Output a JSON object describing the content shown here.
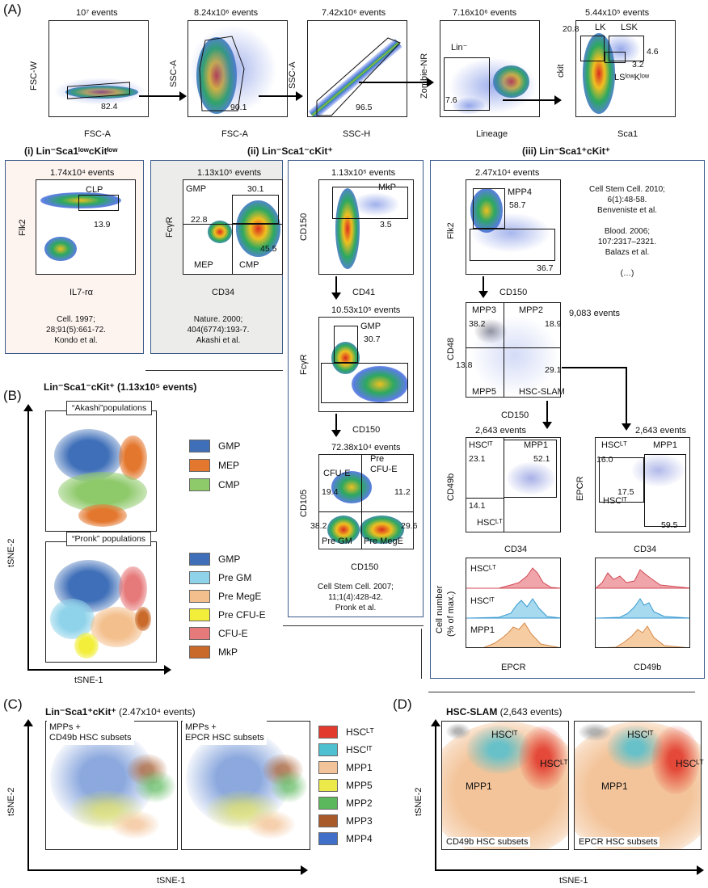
{
  "panelA": {
    "letter": "(A)",
    "plots": [
      {
        "events": "10⁷ events",
        "y": "FSC-W",
        "x": "FSC-A",
        "gate": "82.4"
      },
      {
        "events": "8.24x10⁶ events",
        "y": "SSC-A",
        "x": "FSC-A",
        "gate": "90.1"
      },
      {
        "events": "7.42x10⁶ events",
        "y": "SSC-A",
        "x": "SSC-H",
        "gate": "96.5"
      },
      {
        "events": "7.16x10⁶ events",
        "y": "Zombie-NR",
        "x": "Lineage",
        "gate": "7.6",
        "pop": "Lin⁻"
      },
      {
        "events": "5.44x10⁵ events",
        "y": "ckit",
        "x": "Sca1",
        "lk": "LK",
        "lsk": "LSK",
        "lk_val": "20.8",
        "lsk_val": "4.6",
        "lsklow_val": "3.2",
        "lsklow": "LSˡᵒʷKˡᵒʷ"
      }
    ],
    "sub": {
      "i": {
        "title": "(i) Lin⁻Sca1ˡᵒʷcKitˡᵒʷ",
        "events": "1.74x10⁴ events",
        "y": "Flk2",
        "x": "IL7-rα",
        "pop": "CLP",
        "val": "13.9",
        "cite": [
          "Cell. 1997;",
          "28;91(5):661-72.",
          "Kondo et al."
        ]
      },
      "ii_akashi": {
        "events": "1.13x10⁵ events",
        "y": "FcγR",
        "x": "CD34",
        "gmp": "GMP",
        "gmp_val": "30.1",
        "mep": "MEP",
        "mep_val": "22.8",
        "cmp": "CMP",
        "cmp_val": "45.5",
        "cite": [
          "Nature. 2000;",
          "404(6774):193-7.",
          "Akashi et al."
        ]
      },
      "ii_title": "(ii) Lin⁻Sca1⁻cKit⁺",
      "ii_pronk": {
        "p1": {
          "events": "1.13x10⁵ events",
          "y": "CD150",
          "x": "CD41",
          "pop": "MkP",
          "val": "3.5"
        },
        "p2": {
          "events": "10.53x10⁵ events",
          "y": "FcγR",
          "x": "CD150",
          "pop": "GMP",
          "val": "30.7"
        },
        "p3": {
          "events": "72.38x10⁴ events",
          "y": "CD105",
          "x": "CD150",
          "cfue": "CFU-E",
          "precfue1": "Pre",
          "precfue2": "CFU-E",
          "v1": "19.4",
          "v2": "11.2",
          "v3": "38.2",
          "v4": "29.6",
          "pregm": "Pre GM",
          "premege": "Pre MegE"
        },
        "cite": [
          "Cell Stem Cell. 2007;",
          "11;1(4):428-42.",
          "Pronk et al."
        ]
      },
      "iii": {
        "title": "(iii) Lin⁻Sca1⁺cKit⁺",
        "p1": {
          "events": "2.47x10⁴ events",
          "y": "Flk2",
          "x": "CD150",
          "pop": "MPP4",
          "v1": "58.7",
          "v2": "36.7"
        },
        "cite": [
          "Cell Stem Cell. 2010;",
          "6(1):48-58.",
          "Benveniste et al.",
          "",
          "Blood. 2006;",
          "107:2317–2321.",
          "Balazs et al.",
          "",
          "(…)"
        ],
        "p2": {
          "events": "9,083 events",
          "y": "CD48",
          "x": "CD150",
          "mpp3": "MPP3",
          "mpp2": "MPP2",
          "mpp5": "MPP5",
          "slam": "HSC-SLAM",
          "v1": "38.2",
          "v2": "18.9",
          "v3": "13.8",
          "v4": "29.1"
        },
        "p3": {
          "events": "2,643 events",
          "y": "CD49b",
          "x": "CD34",
          "a": "HSCᴵᵀ",
          "b": "MPP1",
          "c": "HSCᴸᵀ",
          "v1": "23.1",
          "v2": "52.1",
          "v3": "14.1"
        },
        "p4": {
          "events": "2,643 events",
          "y": "EPCR",
          "x": "CD34",
          "a": "HSCᴸᵀ",
          "b": "MPP1",
          "c": "HSCᴵᵀ",
          "v1": "16.0",
          "v2": "17.5",
          "v3": "59.5"
        },
        "hist": {
          "y1": "Cell number",
          "y2": "(% of max.)",
          "x1": "EPCR",
          "x2": "CD49b",
          "l1": "HSCᴸᵀ",
          "l2": "HSCᴵᵀ",
          "l3": "MPP1"
        }
      }
    }
  },
  "panelB": {
    "letter": "(B)",
    "title": "Lin⁻Sca1⁻cKit⁺ (1.13x10⁵ events)",
    "box1": "“Akashi”populations",
    "box2": "“Pronk” populations",
    "y": "tSNE-2",
    "x": "tSNE-1",
    "leg1": [
      {
        "label": "GMP",
        "color": "#3f6fb8"
      },
      {
        "label": "MEP",
        "color": "#e4772e"
      },
      {
        "label": "CMP",
        "color": "#8ec96a"
      }
    ],
    "leg2": [
      {
        "label": "GMP",
        "color": "#3f6fb8"
      },
      {
        "label": "Pre GM",
        "color": "#8fd3ea"
      },
      {
        "label": "Pre MegE",
        "color": "#f3bf8c"
      },
      {
        "label": "Pre CFU-E",
        "color": "#f2ee3a"
      },
      {
        "label": "CFU-E",
        "color": "#e6797a"
      },
      {
        "label": "MkP",
        "color": "#c96a2a"
      }
    ]
  },
  "panelC": {
    "letter": "(C)",
    "title_b": "Lin⁻Sca1⁺cKit⁺",
    "title_r": " (2.47x10⁴ events)",
    "box1a": "MPPs +",
    "box1b": "CD49b HSC subsets",
    "box2a": "MPPs +",
    "box2b": "EPCR HSC subsets",
    "y": "tSNE-2",
    "x": "tSNE-1",
    "leg": [
      {
        "label": "HSCᴸᵀ",
        "color": "#e23b2e"
      },
      {
        "label": "HSCᴵᵀ",
        "color": "#4fc0d0"
      },
      {
        "label": "MPP1",
        "color": "#f3c49a"
      },
      {
        "label": "MPP5",
        "color": "#ece94a"
      },
      {
        "label": "MPP2",
        "color": "#5cb85c"
      },
      {
        "label": "MPP3",
        "color": "#a85a2a"
      },
      {
        "label": "MPP4",
        "color": "#3f6fc8"
      }
    ]
  },
  "panelD": {
    "letter": "(D)",
    "title_b": "HSC-SLAM",
    "title_r": " (2,643 events)",
    "y": "tSNE-2",
    "x": "tSNE-1",
    "hscit": "HSCᴵᵀ",
    "hsclt": "HSCᴸᵀ",
    "mpp1": "MPP1",
    "cap1": "CD49b HSC subsets",
    "cap2": "EPCR HSC subsets"
  }
}
